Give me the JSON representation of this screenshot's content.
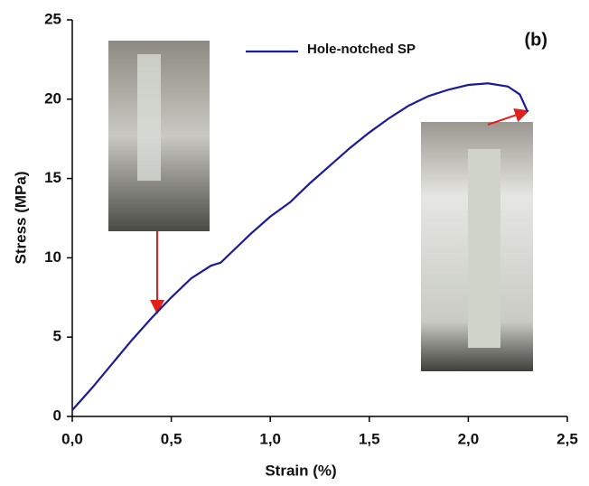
{
  "chart_data": {
    "type": "line",
    "xlabel": "Strain (%)",
    "ylabel": "Stress (MPa)",
    "annotation": "(b)",
    "x": [
      0,
      0.1,
      0.2,
      0.3,
      0.4,
      0.5,
      0.6,
      0.7,
      0.75,
      0.8,
      0.9,
      1.0,
      1.1,
      1.2,
      1.3,
      1.4,
      1.5,
      1.6,
      1.7,
      1.8,
      1.9,
      2.0,
      2.1,
      2.2,
      2.26,
      2.3
    ],
    "series": [
      {
        "name": "Hole-notched SP",
        "color": "#1a1a9c",
        "values": [
          0.4,
          1.8,
          3.3,
          4.8,
          6.2,
          7.5,
          8.7,
          9.5,
          9.7,
          10.3,
          11.5,
          12.6,
          13.5,
          14.7,
          15.8,
          16.9,
          17.9,
          18.8,
          19.6,
          20.2,
          20.6,
          20.9,
          21.0,
          20.8,
          20.3,
          19.2
        ]
      }
    ],
    "xlim": [
      0,
      2.5
    ],
    "ylim": [
      0,
      25
    ],
    "xticks": [
      {
        "value": 0,
        "label": "0,0"
      },
      {
        "value": 0.5,
        "label": "0,5"
      },
      {
        "value": 1.0,
        "label": "1,0"
      },
      {
        "value": 1.5,
        "label": "1,5"
      },
      {
        "value": 2.0,
        "label": "2,0"
      },
      {
        "value": 2.5,
        "label": "2,5"
      }
    ],
    "yticks": [
      0,
      5,
      10,
      15,
      20,
      25
    ],
    "legend_position": "top"
  }
}
